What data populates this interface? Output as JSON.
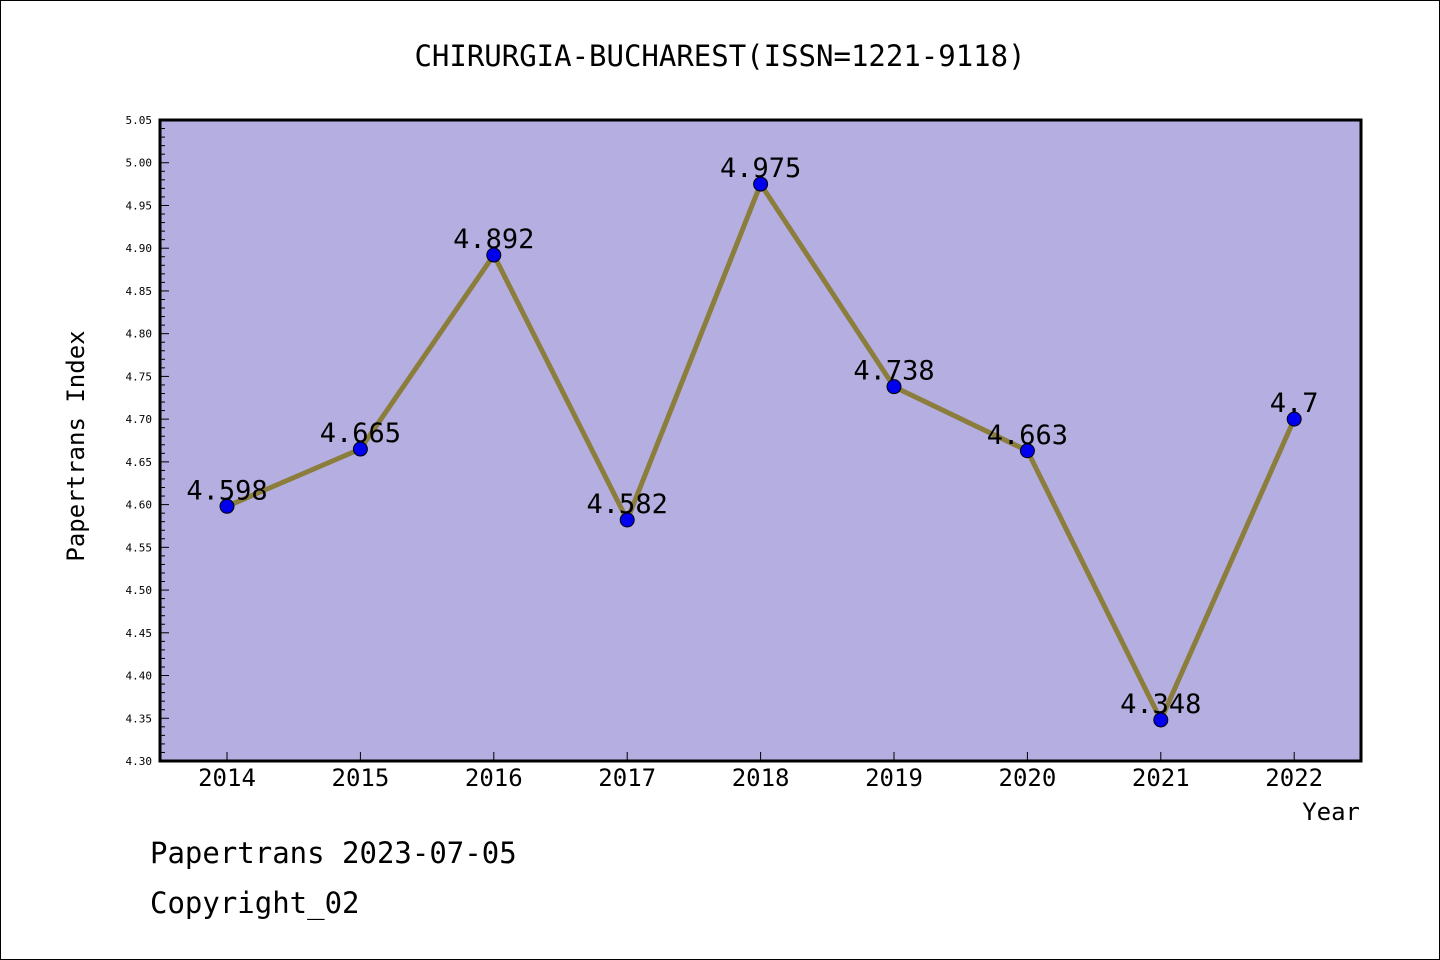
{
  "chart_data": {
    "type": "line",
    "title": "CHIRURGIA-BUCHAREST(ISSN=1221-9118)",
    "xlabel": "Year",
    "ylabel": "Papertrans Index",
    "categories": [
      "2014",
      "2015",
      "2016",
      "2017",
      "2018",
      "2019",
      "2020",
      "2021",
      "2022"
    ],
    "values": [
      4.598,
      4.665,
      4.892,
      4.582,
      4.975,
      4.738,
      4.663,
      4.348,
      4.7
    ],
    "data_labels": [
      "4.598",
      "4.665",
      "4.892",
      "4.582",
      "4.975",
      "4.738",
      "4.663",
      "4.348",
      "4.7"
    ],
    "ylim": [
      4.3,
      5.05
    ],
    "y_ticks": [
      "4.30",
      "4.35",
      "4.40",
      "4.45",
      "4.50",
      "4.55",
      "4.60",
      "4.65",
      "4.70",
      "4.75",
      "4.80",
      "4.85",
      "4.90",
      "4.95",
      "5.00",
      "5.05"
    ],
    "grid": false,
    "legend": "none",
    "colors": {
      "plot_background": "#b5afe1",
      "line": "#8b7d3c",
      "marker": "#0000ee"
    }
  },
  "footer": {
    "line1": "Papertrans 2023-07-05",
    "line2": "Copyright_02"
  }
}
